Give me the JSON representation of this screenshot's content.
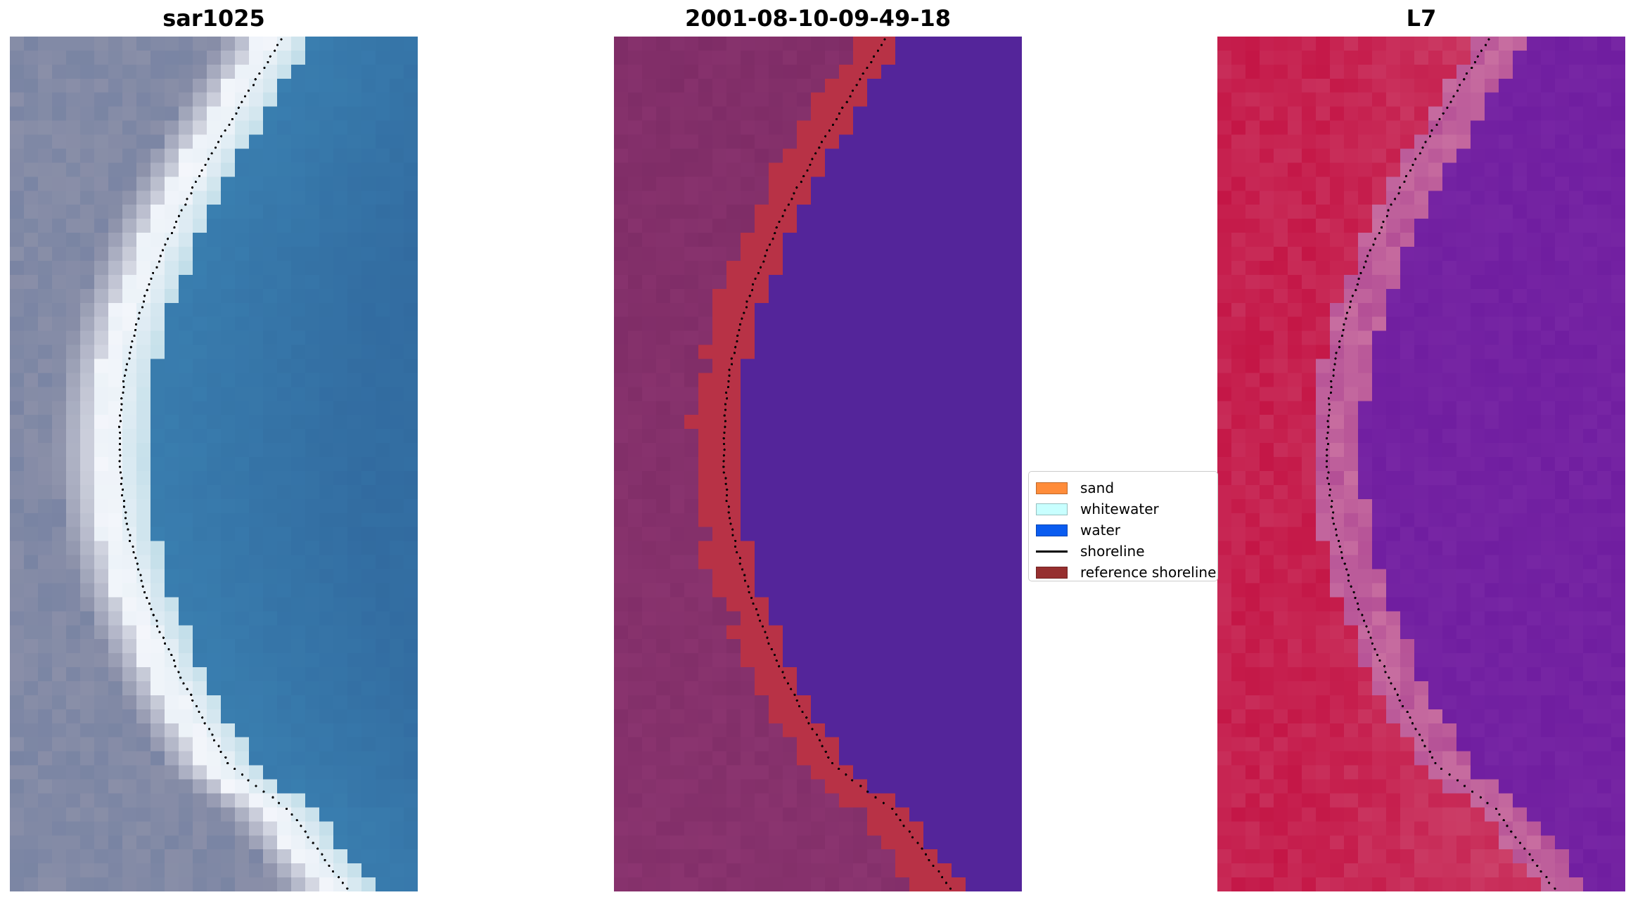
{
  "panels": [
    {
      "title": "sar1025",
      "kind": "rgb-image"
    },
    {
      "title": "2001-08-10-09-49-18",
      "kind": "classified-image"
    },
    {
      "title": "L7",
      "kind": "index-image"
    }
  ],
  "legend": {
    "placement": "center",
    "items": [
      {
        "label": "sand",
        "type": "patch",
        "color": "#ff8c3a"
      },
      {
        "label": "whitewater",
        "type": "patch",
        "color": "#c8ffff"
      },
      {
        "label": "water",
        "type": "patch",
        "color": "#0a5cf0"
      },
      {
        "label": "shoreline",
        "type": "line",
        "color": "#000000"
      },
      {
        "label": "reference shoreline",
        "type": "patch",
        "color": "#962f2f"
      }
    ]
  },
  "colors": {
    "sat_land": "#8a8fa8",
    "sat_beach": "#f4f6fb",
    "sat_water": "#3a7fb0",
    "class_land": "#7e2c66",
    "class_sand": "#b83246",
    "class_water": "#54259a",
    "index_land": "#c41646",
    "index_water": "#701ea0",
    "shoreline_dots": "#000000"
  }
}
